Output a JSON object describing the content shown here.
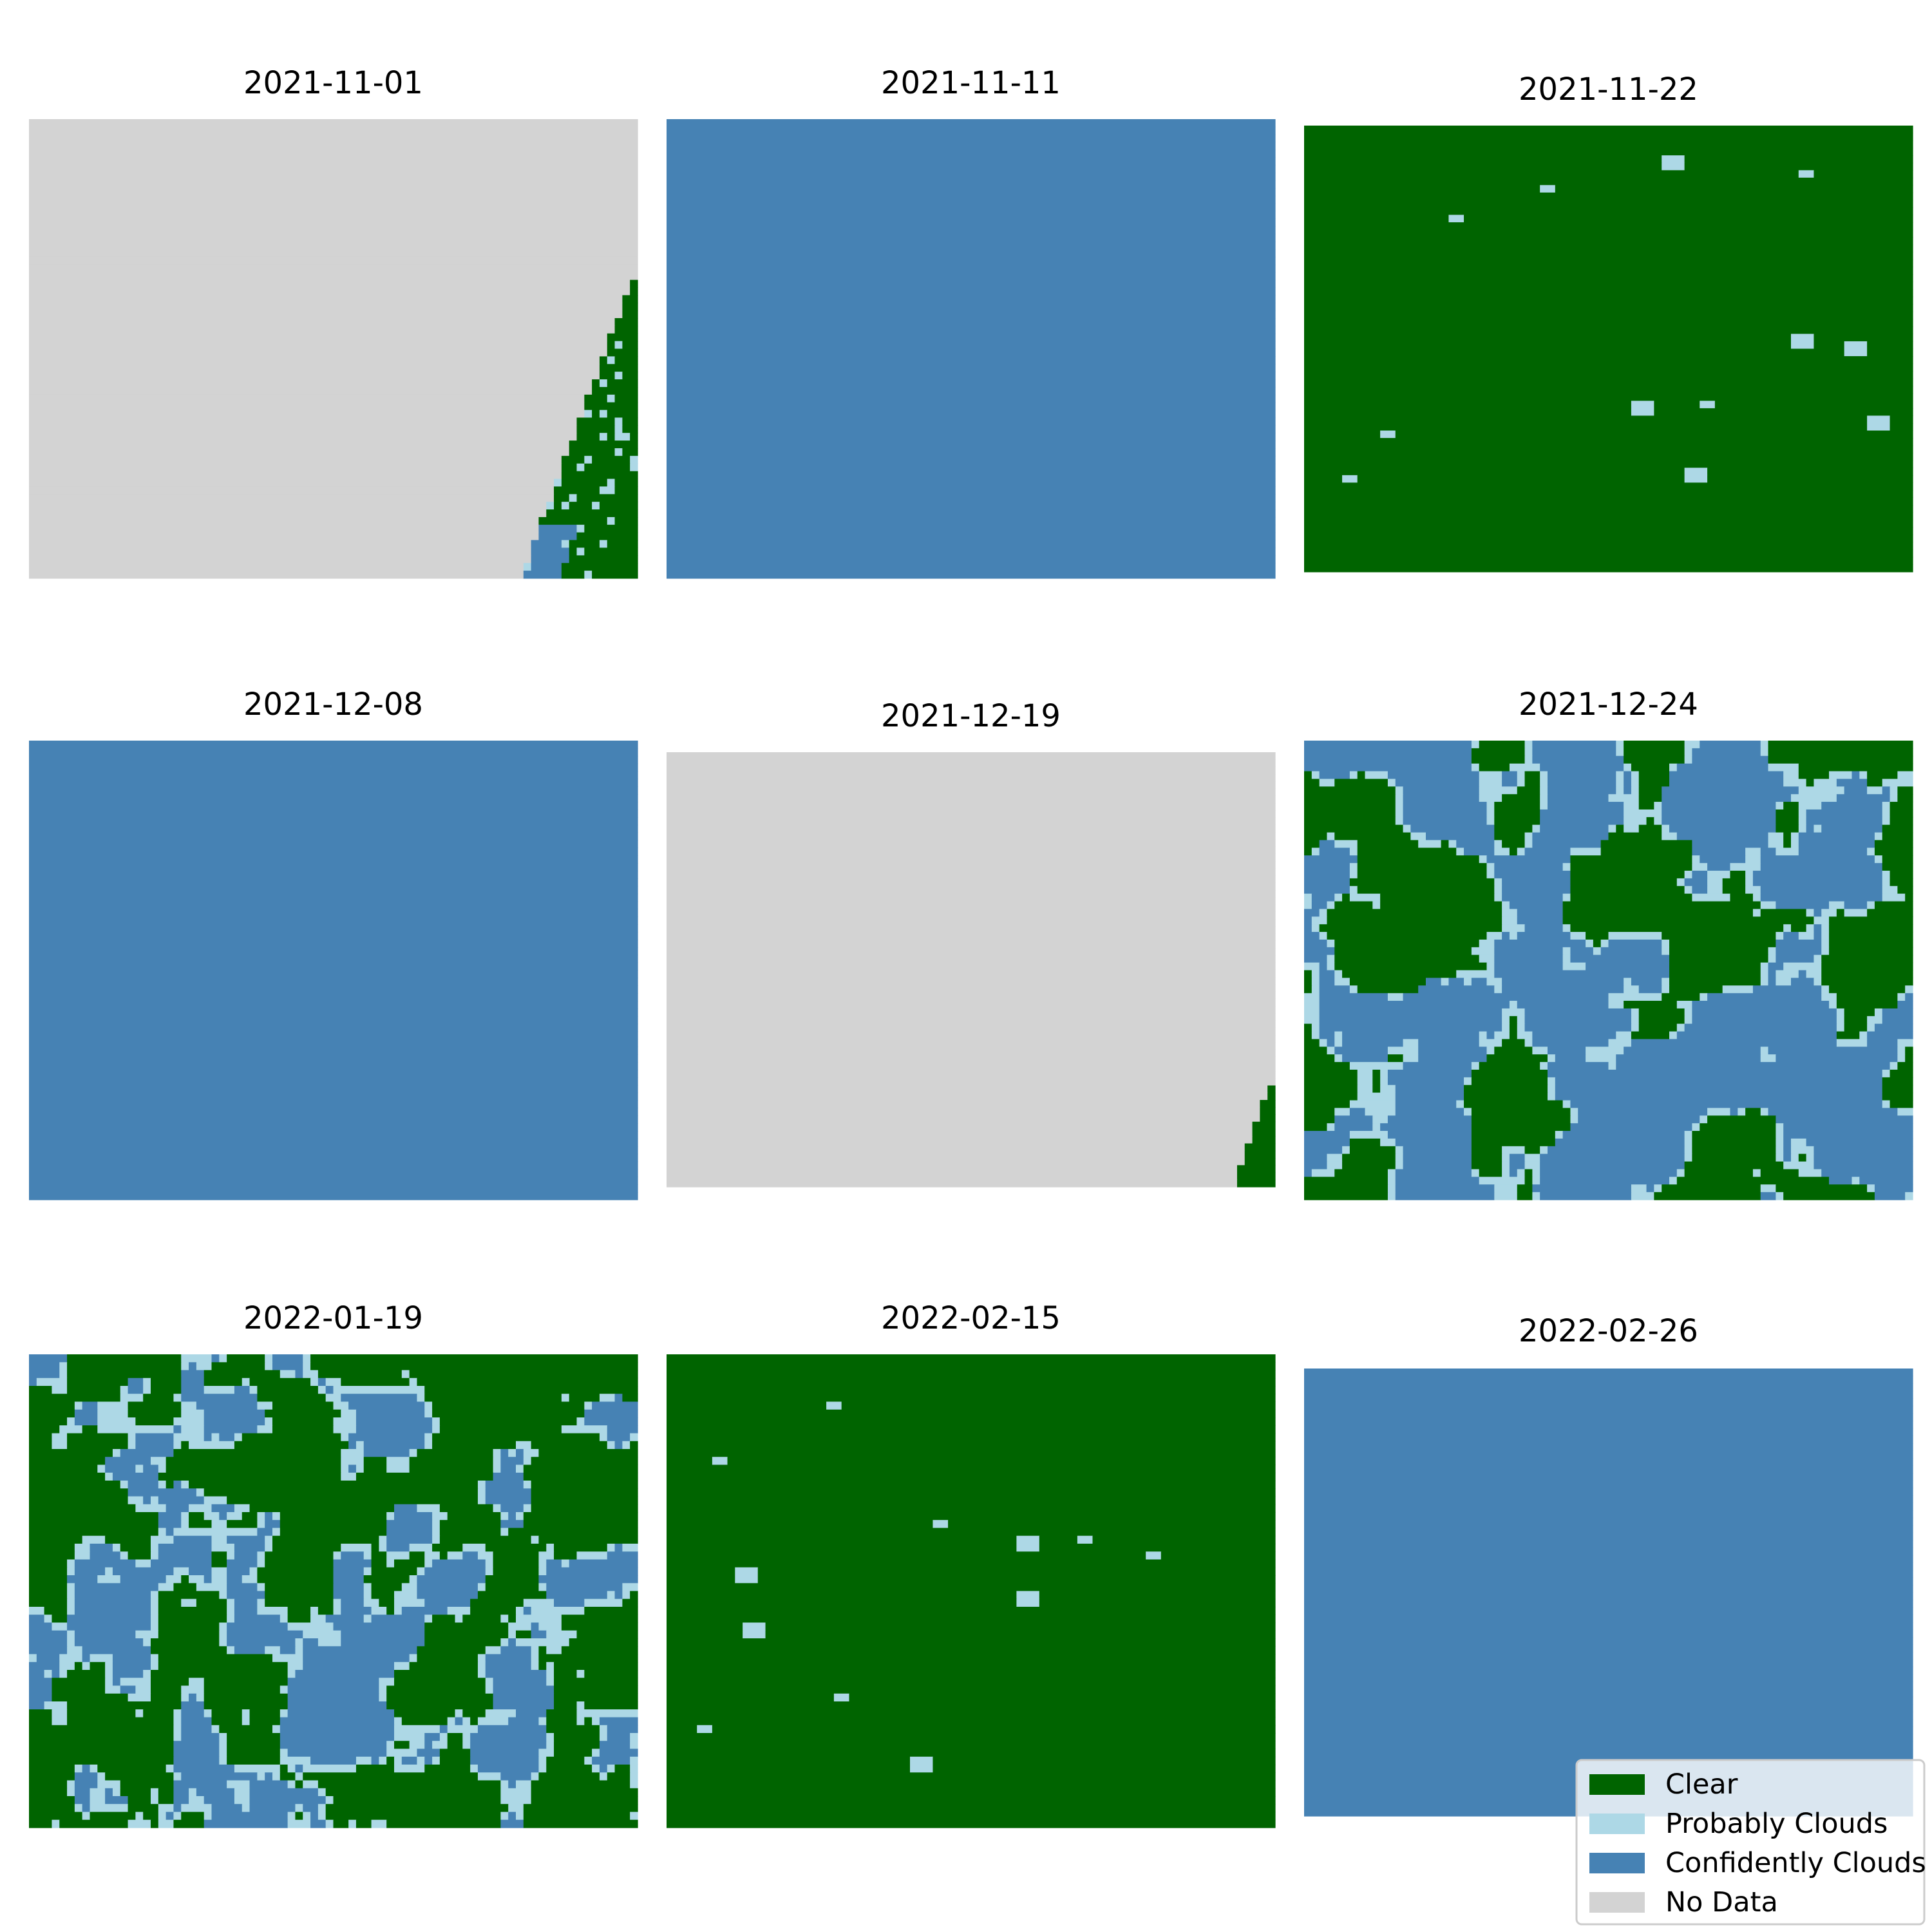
{
  "chart_data": {
    "type": "heatmap",
    "layout": "3x3 grid of cloud mask maps",
    "classes": [
      {
        "key": "clear",
        "label": "Clear",
        "color": "#006400"
      },
      {
        "key": "probably",
        "label": "Probably Clouds",
        "color": "#add8e6"
      },
      {
        "key": "confident",
        "label": "Confidently Clouds",
        "color": "#4682b4"
      },
      {
        "key": "nodata",
        "label": "No Data",
        "color": "#d3d3d3"
      }
    ],
    "legend_position": "lower-right",
    "panels": [
      {
        "title": "2021-11-01",
        "base": "nodata",
        "clear_edge": "right-wedge"
      },
      {
        "title": "2021-11-11",
        "base": "confident"
      },
      {
        "title": "2021-11-22",
        "base": "clear",
        "cloud_cover": "sparse"
      },
      {
        "title": "2021-12-08",
        "base": "confident"
      },
      {
        "title": "2021-12-19",
        "base": "nodata",
        "clear_edge": "corner"
      },
      {
        "title": "2021-12-24",
        "base": "clear",
        "cloud_cover": "heavy"
      },
      {
        "title": "2022-01-19",
        "base": "clear",
        "cloud_cover": "moderate"
      },
      {
        "title": "2022-02-15",
        "base": "clear",
        "cloud_cover": "sparse"
      },
      {
        "title": "2022-02-26",
        "base": "confident"
      }
    ]
  }
}
